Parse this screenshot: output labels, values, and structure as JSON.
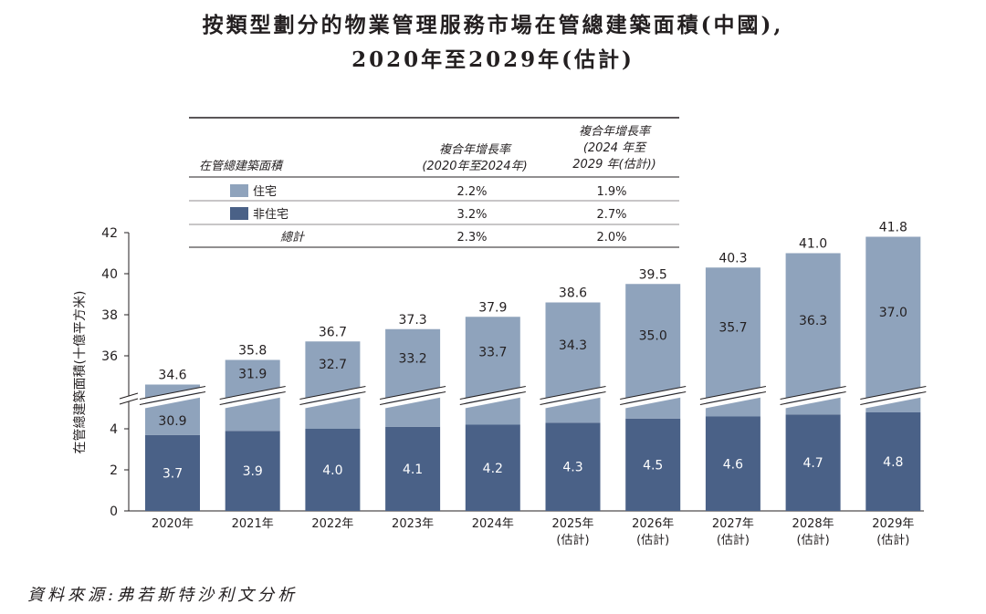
{
  "title": {
    "line1": "按類型劃分的物業管理服務市場在管總建築面積(中國),",
    "line2": "2020年至2029年(估計)"
  },
  "table": {
    "col1_header": "在管總建築面積",
    "col2_header": [
      "複合年增長率",
      "(2020年至2024年)"
    ],
    "col3_header": [
      "複合年增長率",
      "(2024 年至",
      "2029 年(估計))"
    ],
    "rows": [
      {
        "label": "住宅",
        "cagr_2020_2024": "2.2%",
        "cagr_2024_2029": "1.9%",
        "color": "#8fa3bc"
      },
      {
        "label": "非住宅",
        "cagr_2020_2024": "3.2%",
        "cagr_2024_2029": "2.7%",
        "color": "#4a6187"
      },
      {
        "label": "總計",
        "cagr_2020_2024": "2.3%",
        "cagr_2024_2029": "2.0%"
      }
    ]
  },
  "chart_data": {
    "type": "bar",
    "stacked": true,
    "broken_axis": true,
    "ylabel": "在管總建築面積(十億平方米)",
    "yticks_lower": [
      0,
      2,
      4
    ],
    "yticks_upper": [
      36,
      38,
      40,
      42
    ],
    "categories": [
      [
        "2020年"
      ],
      [
        "2021年"
      ],
      [
        "2022年"
      ],
      [
        "2023年"
      ],
      [
        "2024年"
      ],
      [
        "2025年",
        "(估計)"
      ],
      [
        "2026年",
        "(估計)"
      ],
      [
        "2027年",
        "(估計)"
      ],
      [
        "2028年",
        "(估計)"
      ],
      [
        "2029年",
        "(估計)"
      ]
    ],
    "series": [
      {
        "name": "非住宅",
        "color": "#4a6187",
        "values": [
          3.7,
          3.9,
          4.0,
          4.1,
          4.2,
          4.3,
          4.5,
          4.6,
          4.7,
          4.8
        ]
      },
      {
        "name": "住宅",
        "color": "#8fa3bc",
        "values": [
          30.9,
          31.9,
          32.7,
          33.2,
          33.7,
          34.3,
          35.0,
          35.7,
          36.3,
          37.0
        ]
      }
    ],
    "totals": [
      34.6,
      35.8,
      36.7,
      37.3,
      37.9,
      38.6,
      39.5,
      40.3,
      41.0,
      41.8
    ]
  },
  "source": "資料來源:弗若斯特沙利文分析"
}
